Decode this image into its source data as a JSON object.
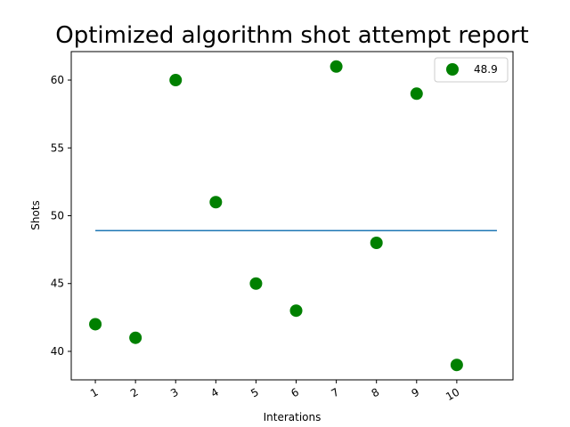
{
  "chart_data": {
    "type": "scatter",
    "title": "Optimized algorithm shot attempt report",
    "xlabel": "Interations",
    "ylabel": "Shots",
    "x": [
      1,
      2,
      3,
      4,
      5,
      6,
      7,
      8,
      9,
      10
    ],
    "x_tick_labels": [
      "1",
      "2",
      "3",
      "4",
      "5",
      "6",
      "7",
      "8",
      "9",
      "10"
    ],
    "y_ticks": [
      40,
      45,
      50,
      55,
      60
    ],
    "xlim": [
      0.4,
      11.4
    ],
    "ylim": [
      37.9,
      62.1
    ],
    "series": [
      {
        "values": [
          42,
          41,
          60,
          51,
          45,
          43,
          61,
          48,
          59,
          39
        ],
        "color": "#008000"
      }
    ],
    "mean_line": {
      "value": 48.9,
      "x_range": [
        1,
        11
      ],
      "color": "#1f77b4"
    },
    "legend": {
      "position": "top-right",
      "entries": [
        {
          "label": "48.9",
          "marker": "circle",
          "color": "#008000"
        }
      ]
    },
    "grid": false
  }
}
